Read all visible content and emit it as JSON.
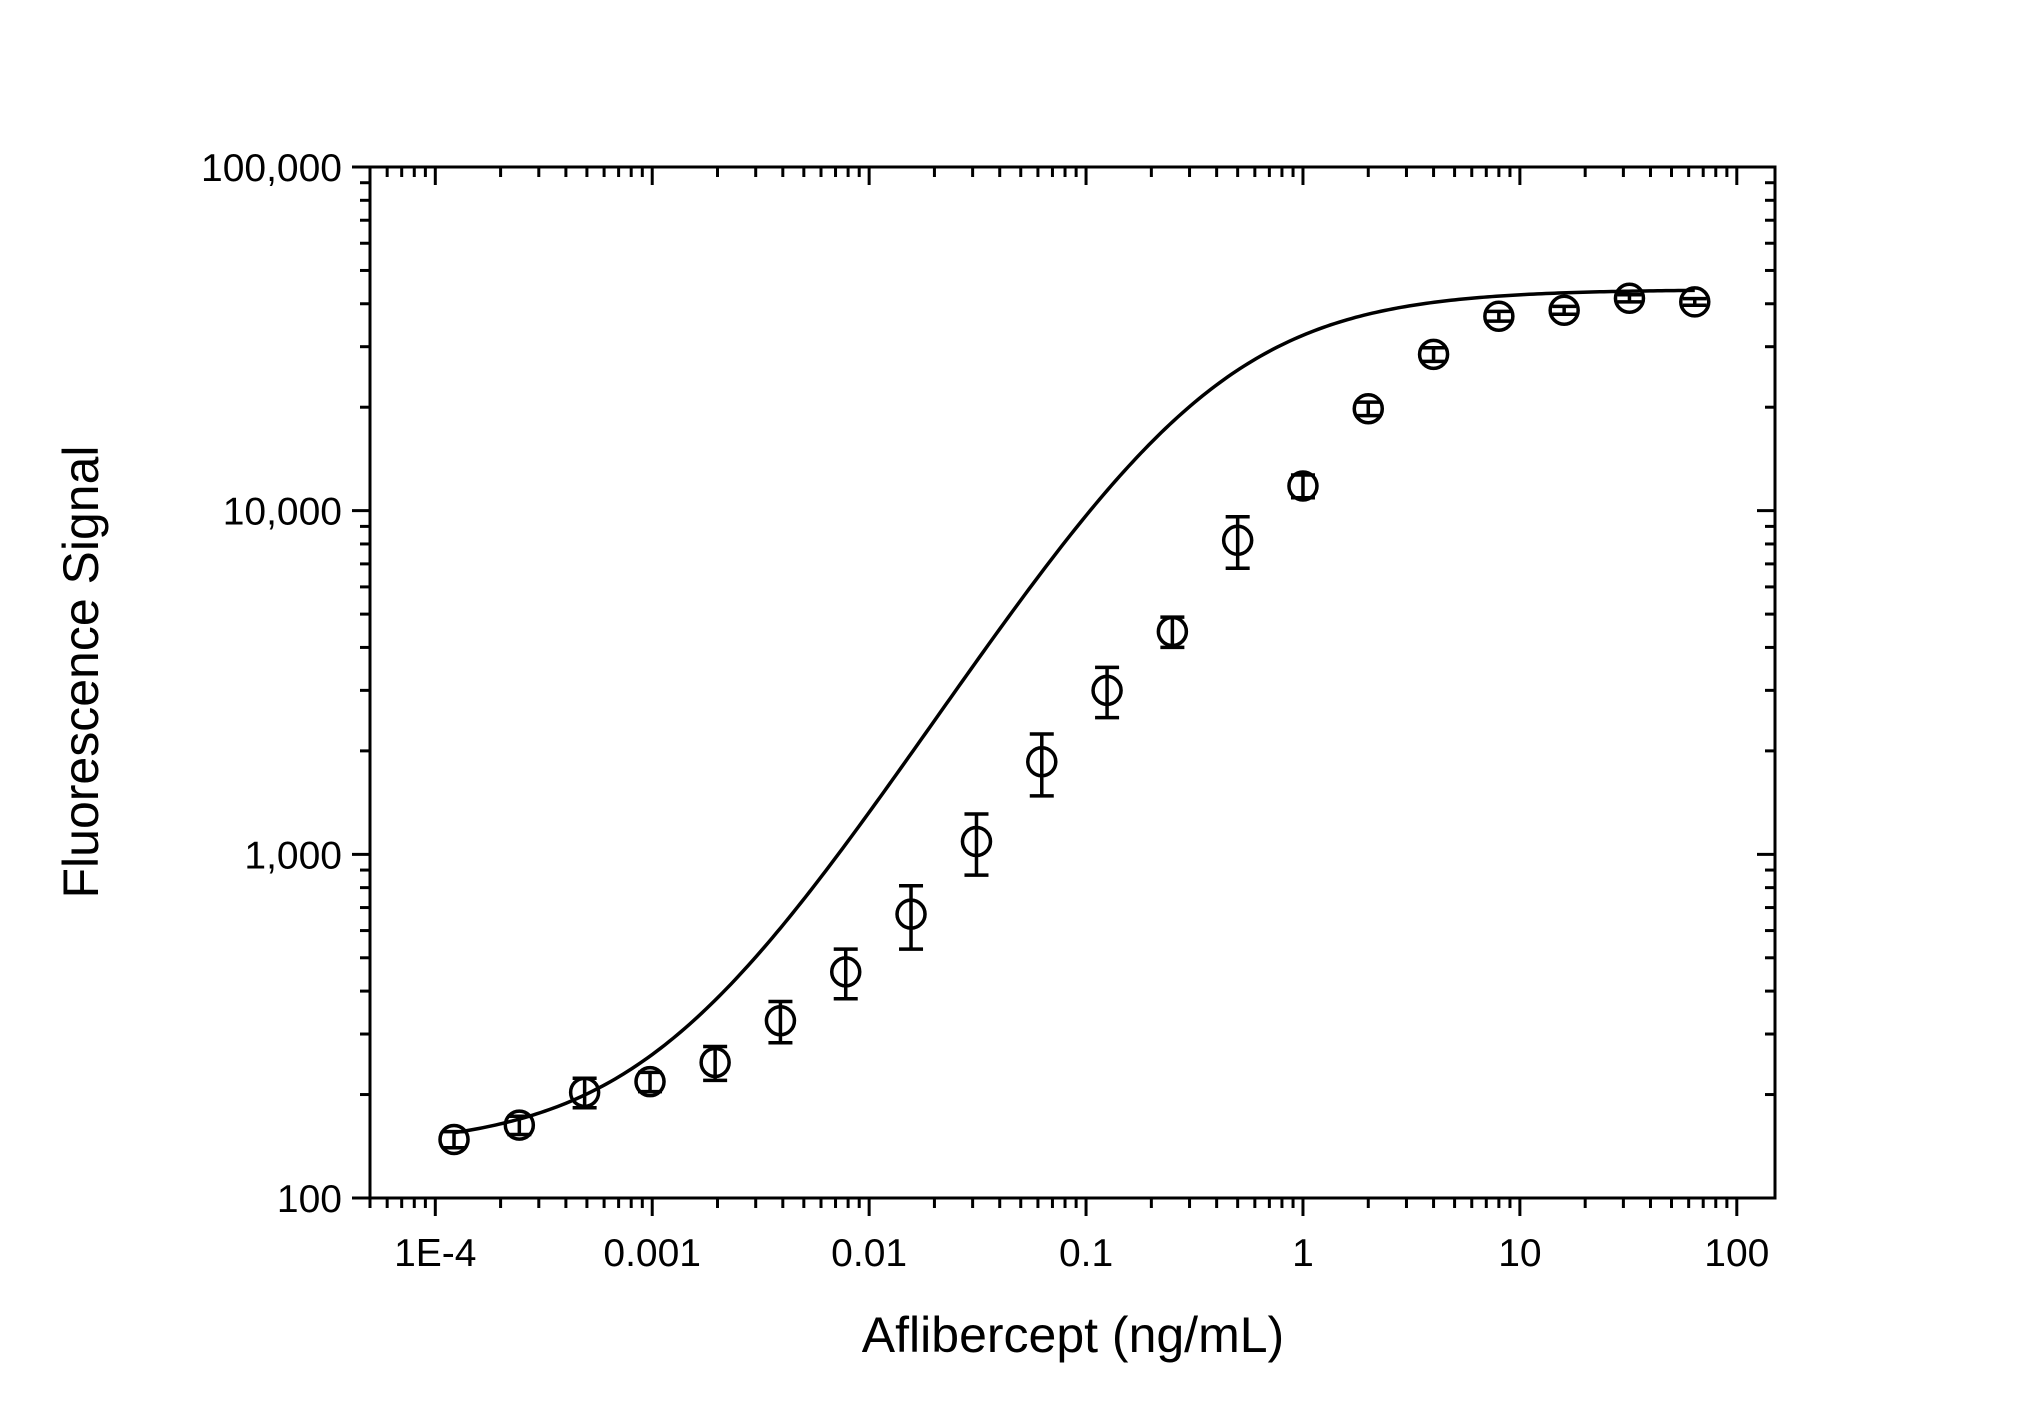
{
  "chart_data": {
    "type": "scatter",
    "title": "",
    "xlabel": "Aflibercept (ng/mL)",
    "ylabel": "Fluorescence Signal",
    "x_scale": "log",
    "y_scale": "log",
    "xlim": [
      5e-05,
      150
    ],
    "ylim": [
      100,
      100000
    ],
    "x_ticks": [
      0.0001,
      0.001,
      0.01,
      0.1,
      1,
      10,
      100
    ],
    "x_tick_labels": [
      "1E-4",
      "0.001",
      "0.01",
      "0.1",
      "1",
      "10",
      "100"
    ],
    "y_ticks": [
      100,
      1000,
      10000,
      100000
    ],
    "y_tick_labels": [
      "100",
      "1,000",
      "10,000",
      "100,000"
    ],
    "grid": false,
    "legend": "none",
    "points": [
      {
        "x": 0.000122,
        "y": 148,
        "err": 8
      },
      {
        "x": 0.000244,
        "y": 163,
        "err": 10
      },
      {
        "x": 0.000488,
        "y": 203,
        "err": 20
      },
      {
        "x": 0.000977,
        "y": 218,
        "err": 14
      },
      {
        "x": 0.00195,
        "y": 248,
        "err": 28
      },
      {
        "x": 0.0039,
        "y": 328,
        "err": 45
      },
      {
        "x": 0.0078,
        "y": 455,
        "err": 75
      },
      {
        "x": 0.0156,
        "y": 670,
        "err": 140
      },
      {
        "x": 0.03125,
        "y": 1090,
        "err": 220
      },
      {
        "x": 0.0625,
        "y": 1860,
        "err": 380
      },
      {
        "x": 0.125,
        "y": 3000,
        "err": 500
      },
      {
        "x": 0.25,
        "y": 4450,
        "err": 450
      },
      {
        "x": 0.5,
        "y": 8200,
        "err": 1400
      },
      {
        "x": 1,
        "y": 11800,
        "err": 900
      },
      {
        "x": 2,
        "y": 19800,
        "err": 900
      },
      {
        "x": 4,
        "y": 28500,
        "err": 1300
      },
      {
        "x": 8,
        "y": 36800,
        "err": 1200
      },
      {
        "x": 16,
        "y": 38300,
        "err": 1000
      },
      {
        "x": 32,
        "y": 41500,
        "err": 1000
      },
      {
        "x": 64,
        "y": 40500,
        "err": 900
      }
    ],
    "fit_curve": {
      "model": "4PL",
      "bottom": 140,
      "top": 44000,
      "ec50": 0.36,
      "hill": 1.0,
      "x_range": [
        0.000122,
        64
      ]
    },
    "colors": {
      "marker_stroke": "#000000",
      "marker_fill": "#ffffff",
      "line": "#000000",
      "axis": "#000000"
    }
  }
}
